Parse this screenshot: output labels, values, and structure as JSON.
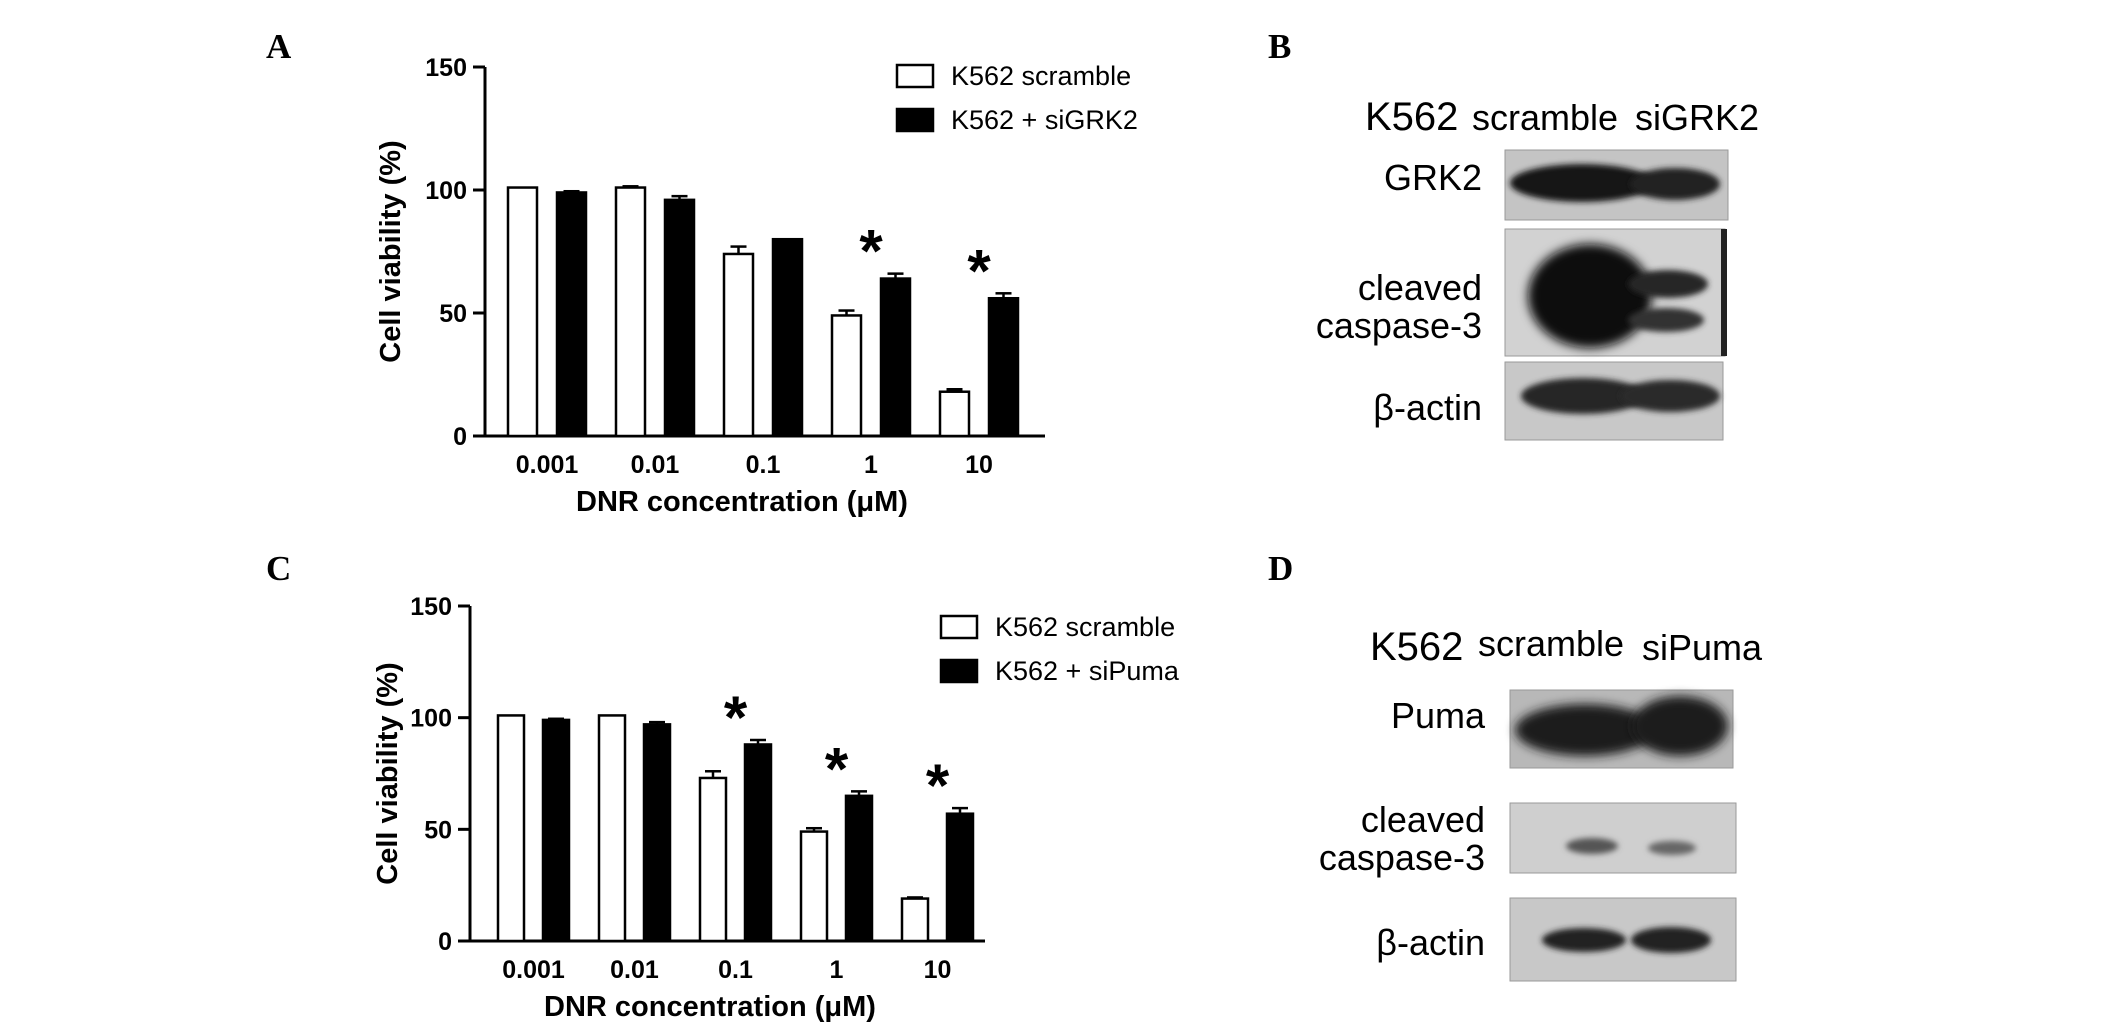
{
  "panels": {
    "A": "A",
    "B": "B",
    "C": "C",
    "D": "D"
  },
  "chart_data": [
    {
      "type": "bar",
      "panel": "A",
      "categories": [
        "0.001",
        "0.01",
        "0.1",
        "1",
        "10"
      ],
      "series": [
        {
          "name": "K562 scramble",
          "values": [
            101,
            101,
            74,
            49,
            18
          ],
          "errors": [
            0,
            0.5,
            3,
            2,
            1
          ],
          "fill": "#ffffff"
        },
        {
          "name": "K562 + siGRK2",
          "values": [
            99,
            96,
            80,
            64,
            56
          ],
          "errors": [
            0.5,
            1.5,
            0,
            2,
            2
          ],
          "fill": "#000000"
        }
      ],
      "significance": [
        "",
        "",
        "",
        "*",
        "*"
      ],
      "xlabel": "DNR concentration (μM)",
      "ylabel": "Cell viability (%)",
      "yticks": [
        "0",
        "50",
        "100",
        "150"
      ],
      "ylim": [
        0,
        150
      ],
      "grid": false,
      "legend": "top-right"
    },
    {
      "type": "bar",
      "panel": "C",
      "categories": [
        "0.001",
        "0.01",
        "0.1",
        "1",
        "10"
      ],
      "series": [
        {
          "name": "K562 scramble",
          "values": [
            101,
            101,
            73,
            49,
            19
          ],
          "errors": [
            0,
            0,
            3,
            1.5,
            0.5
          ],
          "fill": "#ffffff"
        },
        {
          "name": "K562 + siPuma",
          "values": [
            99,
            97,
            88,
            65,
            57
          ],
          "errors": [
            0.5,
            1,
            2,
            2,
            2.5
          ],
          "fill": "#000000"
        }
      ],
      "significance": [
        "",
        "",
        "*",
        "*",
        "*"
      ],
      "xlabel": "DNR concentration (μM)",
      "ylabel": "Cell viability (%)",
      "yticks": [
        "0",
        "50",
        "100",
        "150"
      ],
      "ylim": [
        0,
        150
      ],
      "grid": false,
      "legend": "top-right"
    }
  ],
  "blots": {
    "B": {
      "header_cell": "K562",
      "header_lanes": [
        "scramble",
        "siGRK2"
      ],
      "rows": [
        "GRK2",
        "cleaved",
        "caspase-3",
        "β-actin"
      ]
    },
    "D": {
      "header_cell": "K562",
      "header_lanes": [
        "scramble",
        "siPuma"
      ],
      "rows": [
        "Puma",
        "cleaved",
        "caspase-3",
        "β-actin"
      ]
    }
  }
}
